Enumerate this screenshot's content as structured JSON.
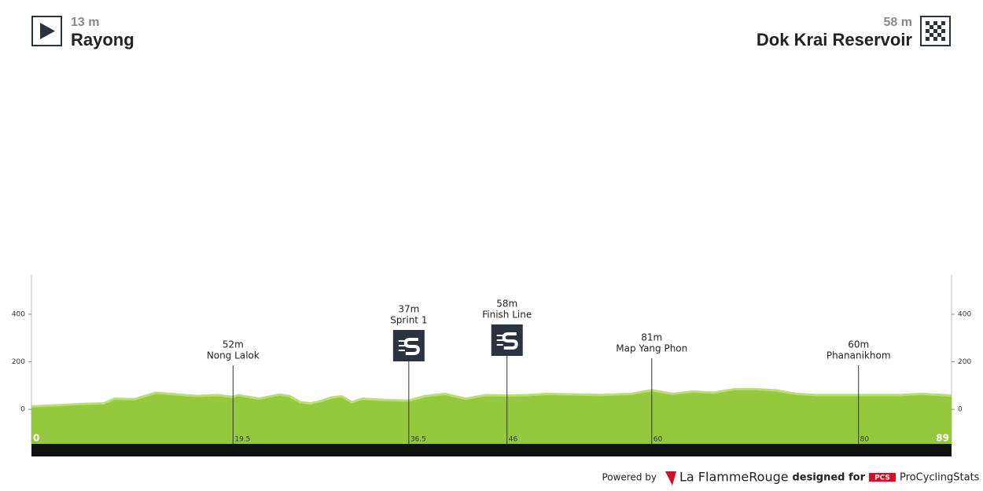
{
  "chart_data": {
    "type": "profile",
    "start": {
      "elevation": "13 m",
      "name": "Rayong"
    },
    "finish": {
      "elevation": "58 m",
      "name": "Dok Krai Reservoir"
    },
    "xlim": [
      0,
      89
    ],
    "ylim": [
      -145,
      565
    ],
    "yticks": [
      0,
      200,
      400
    ],
    "color": "#95c93d",
    "km": [
      0,
      3,
      5,
      7,
      8,
      10,
      12,
      14,
      16,
      18,
      19.5,
      20,
      22,
      24,
      25,
      26,
      27,
      28,
      29,
      30,
      31,
      32,
      34,
      36,
      36.5,
      38,
      40,
      42,
      44,
      46,
      48,
      50,
      55,
      58,
      60,
      62,
      64,
      66,
      68,
      70,
      72,
      74,
      76,
      80,
      84,
      86,
      89
    ],
    "elevation": [
      13,
      18,
      23,
      25,
      45,
      43,
      70,
      63,
      56,
      60,
      52,
      60,
      45,
      62,
      55,
      30,
      25,
      35,
      50,
      55,
      30,
      45,
      40,
      37,
      37,
      55,
      65,
      45,
      60,
      58,
      60,
      65,
      60,
      65,
      81,
      65,
      75,
      70,
      85,
      85,
      80,
      65,
      60,
      60,
      60,
      65,
      58
    ],
    "waypoints": [
      {
        "name": "Nong Lalok",
        "elevation": "52m",
        "km": 19.5,
        "icon": "none"
      },
      {
        "name": "Sprint 1",
        "elevation": "37m",
        "km": 36.5,
        "icon": "sprint"
      },
      {
        "name": "Finish Line",
        "elevation": "58m",
        "km": 46,
        "icon": "sprint"
      },
      {
        "name": "Map Yang Phon",
        "elevation": "81m",
        "km": 60,
        "icon": "none"
      },
      {
        "name": "Phananikhom",
        "elevation": "60m",
        "km": 80,
        "icon": "none"
      }
    ]
  },
  "footer": {
    "powered": "Powered by",
    "brand": "La FlammeRouge",
    "designed": "designed for",
    "pcs": "PCS",
    "site": "ProCyclingStats"
  }
}
